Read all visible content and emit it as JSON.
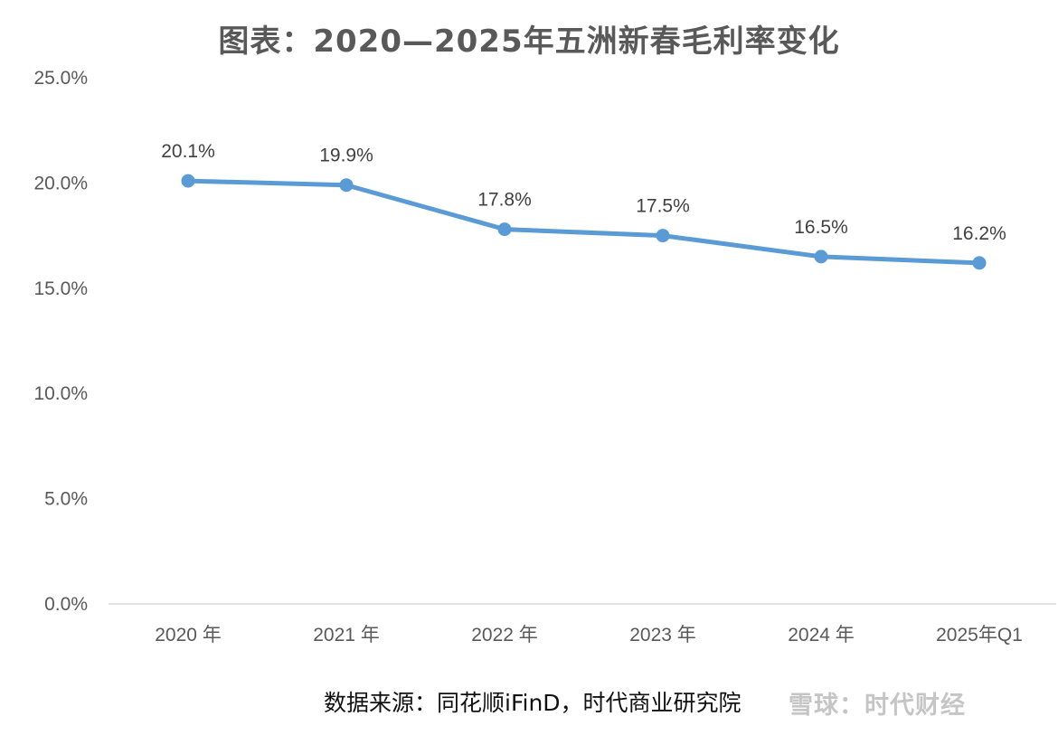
{
  "chart_data": {
    "type": "line",
    "title": "图表：2020—2025年五洲新春毛利率变化",
    "categories": [
      "2020 年",
      "2021 年",
      "2022 年",
      "2023 年",
      "2024 年",
      "2025年Q1"
    ],
    "series": [
      {
        "values": [
          20.1,
          19.9,
          17.8,
          17.5,
          16.5,
          16.2
        ],
        "data_labels": [
          "20.1%",
          "19.9%",
          "17.8%",
          "17.5%",
          "16.5%",
          "16.2%"
        ],
        "color": "#5B9BD5"
      }
    ],
    "y_ticks": [
      "0.0%",
      "5.0%",
      "10.0%",
      "15.0%",
      "20.0%",
      "25.0%"
    ],
    "y_tick_values": [
      0,
      5,
      10,
      15,
      20,
      25
    ],
    "ylim": [
      0,
      25
    ],
    "grid": false,
    "legend": "none",
    "source_note": "数据来源：同花顺iFinD，时代商业研究院",
    "watermark": "雪球：时代财经"
  }
}
